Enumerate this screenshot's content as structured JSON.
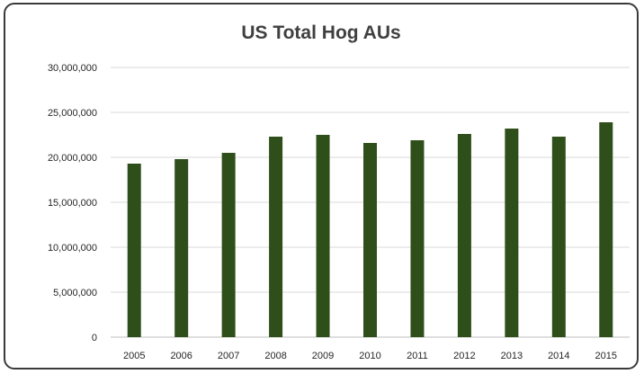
{
  "chart_data": {
    "type": "bar",
    "title": "US Total Hog AUs",
    "xlabel": "",
    "ylabel": "",
    "categories": [
      "2005",
      "2006",
      "2007",
      "2008",
      "2009",
      "2010",
      "2011",
      "2012",
      "2013",
      "2014",
      "2015"
    ],
    "values": [
      19300000,
      19800000,
      20500000,
      22300000,
      22500000,
      21600000,
      21900000,
      22600000,
      23200000,
      22300000,
      23900000
    ],
    "ylim": [
      0,
      30000000
    ],
    "yticks": [
      0,
      5000000,
      10000000,
      15000000,
      20000000,
      25000000,
      30000000
    ],
    "ytick_labels": [
      "0",
      "5,000,000",
      "10,000,000",
      "15,000,000",
      "20,000,000",
      "25,000,000",
      "30,000,000"
    ],
    "grid": true,
    "legend": "none",
    "bar_color": "#2f4f1a",
    "gridline_color": "#d9d9d9"
  }
}
